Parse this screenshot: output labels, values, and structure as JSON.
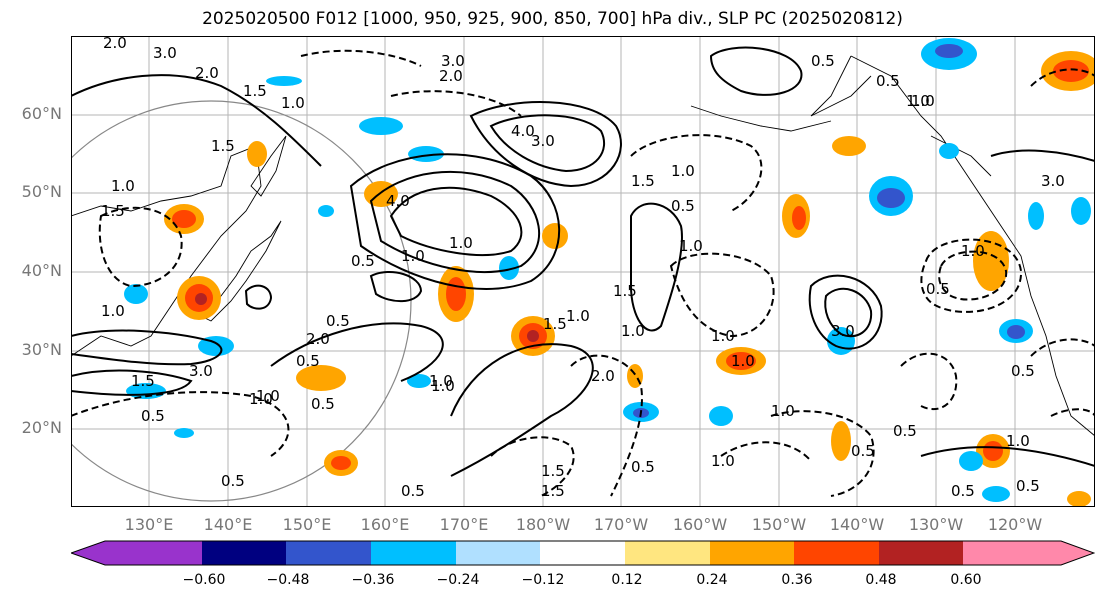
{
  "title": "2025020500 F012 [1000, 950, 925, 900, 850, 700] hPa div., SLP PC (2025020812)",
  "lat_labels": [
    "60°N",
    "50°N",
    "40°N",
    "30°N",
    "20°N"
  ],
  "lon_labels": [
    "130°E",
    "140°E",
    "150°E",
    "160°E",
    "170°E",
    "180°W",
    "170°W",
    "160°W",
    "150°W",
    "140°W",
    "130°W",
    "120°W"
  ],
  "colorbar": {
    "ticks": [
      "−0.60",
      "−0.48",
      "−0.36",
      "−0.24",
      "−0.12",
      "0.12",
      "0.24",
      "0.36",
      "0.48",
      "0.60"
    ],
    "colors": [
      "#9933cc",
      "#000080",
      "#3355cc",
      "#00bfff",
      "#b0e0ff",
      "#ffffff",
      "#ffe680",
      "#ffa500",
      "#ff4500",
      "#b22222",
      "#ff88aa"
    ]
  },
  "contour_labels": [
    "2.0",
    "3.0",
    "2.0",
    "1.5",
    "1.0",
    "1.5",
    "4.0",
    "3.0",
    "2.0",
    "3.0",
    "1.5",
    "1.0",
    "0.5",
    "1.0",
    "0.5",
    "1.0",
    "4.0",
    "1.0",
    "1.0",
    "0.5",
    "1.5",
    "1.0",
    "0.5",
    "2.0",
    "1.5",
    "1.5",
    "1.0",
    "1.0",
    "3.0",
    "1.0",
    "1.0",
    "1.5",
    "1.5",
    "1.0",
    "1.0",
    "0.5",
    "0.5",
    "3.0",
    "0.5",
    "1.0",
    "3.0",
    "1.0",
    "0.5",
    "1.0",
    "1.0",
    "0.5",
    "0.5",
    "0.5",
    "1.0",
    "0.5",
    "1.0",
    "0.5",
    "1.5",
    "0.5",
    "0.5",
    "0.5",
    "1.0",
    "0.5",
    "2.0",
    "1.0"
  ]
}
